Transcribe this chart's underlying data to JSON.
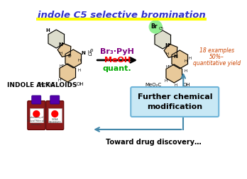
{
  "title": "indole C5 selective bromination",
  "title_color": "#3333CC",
  "title_style": "italic",
  "underline_color": "#FFFF00",
  "bg_color": "#FFFFFF",
  "reagent_line1": "Br₃·PyH",
  "reagent_line1_color": "#800080",
  "reagent_line2": "MeOH",
  "reagent_line2_color": "#FF0000",
  "reagent_line3": "quant.",
  "reagent_line3_color": "#00AA00",
  "yield_line1": "18 examples",
  "yield_line2": "50%–",
  "yield_line3": "quantitative yield",
  "yield_color": "#CC4400",
  "indole_label": "INDOLE ALKALOIDS",
  "further_text": "Further chemical\nmodification",
  "further_bg": "#C8E8F5",
  "further_border": "#6EB4D8",
  "toward_text": "Toward drug discovery…",
  "br_circle_color": "#90EE90",
  "arrow_color": "#000000",
  "bottom_arrow_color": "#4488AA",
  "mol_color": "#E8C99A"
}
